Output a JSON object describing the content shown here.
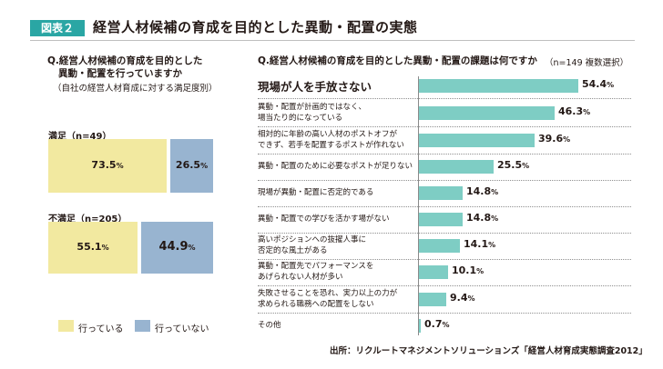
{
  "header": {
    "figure_badge": "図表２",
    "title": "経営人材候補の育成を目的とした異動・配置の実態"
  },
  "colors": {
    "yes": "#f2e9a0",
    "no": "#98b4d0",
    "accent": "#2aa6a4",
    "bar": "#7ecdc4"
  },
  "chart_data": [
    {
      "type": "bar",
      "orientation": "horizontal-stacked-100",
      "question_lines": [
        "Q.経営人材候補の育成を目的とした",
        "異動・配置を行っていますか",
        "（自社の経営人材育成に対する満足度別）"
      ],
      "series": [
        {
          "name": "行っている",
          "color": "#f2e9a0"
        },
        {
          "name": "行っていない",
          "color": "#98b4d0"
        }
      ],
      "groups": [
        {
          "label": "満足（n=49）",
          "values": [
            73.5,
            26.5
          ]
        },
        {
          "label": "不満足（n=205）",
          "values": [
            55.1,
            44.9
          ]
        }
      ],
      "unit": "%",
      "legend": [
        "行っている",
        "行っていない"
      ],
      "legend_position": "bottom-left"
    },
    {
      "type": "bar",
      "orientation": "horizontal",
      "question": "Q.経営人材候補の育成を目的とした異動・配置の課題は何ですか",
      "note": "（n=149 複数選択）",
      "unit": "%",
      "categories": [
        [
          "現場が人を手放さない"
        ],
        [
          "異動・配置が計画的ではなく、",
          "場当たり的になっている"
        ],
        [
          "相対的に年齢の高い人材のポストオフが",
          "できず、若手を配置するポストが作れない"
        ],
        [
          "異動・配置のために必要なポストが足りない"
        ],
        [
          "現場が異動・配置に否定的である"
        ],
        [
          "異動・配置での学びを活かす場がない"
        ],
        [
          "高いポジションへの抜擢人事に",
          "否定的な風土がある"
        ],
        [
          "異動・配置先でパフォーマンスを",
          "あげられない人材が多い"
        ],
        [
          "失敗させることを恐れ、実力以上の力が",
          "求められる職務への配置をしない"
        ],
        [
          "その他"
        ]
      ],
      "values": [
        54.4,
        46.3,
        39.6,
        25.5,
        14.8,
        14.8,
        14.1,
        10.1,
        9.4,
        0.7
      ],
      "xlim": [
        0,
        60
      ]
    }
  ],
  "source": "出所：リクルートマネジメントソリューションズ「経営人材育成実態調査2012」"
}
